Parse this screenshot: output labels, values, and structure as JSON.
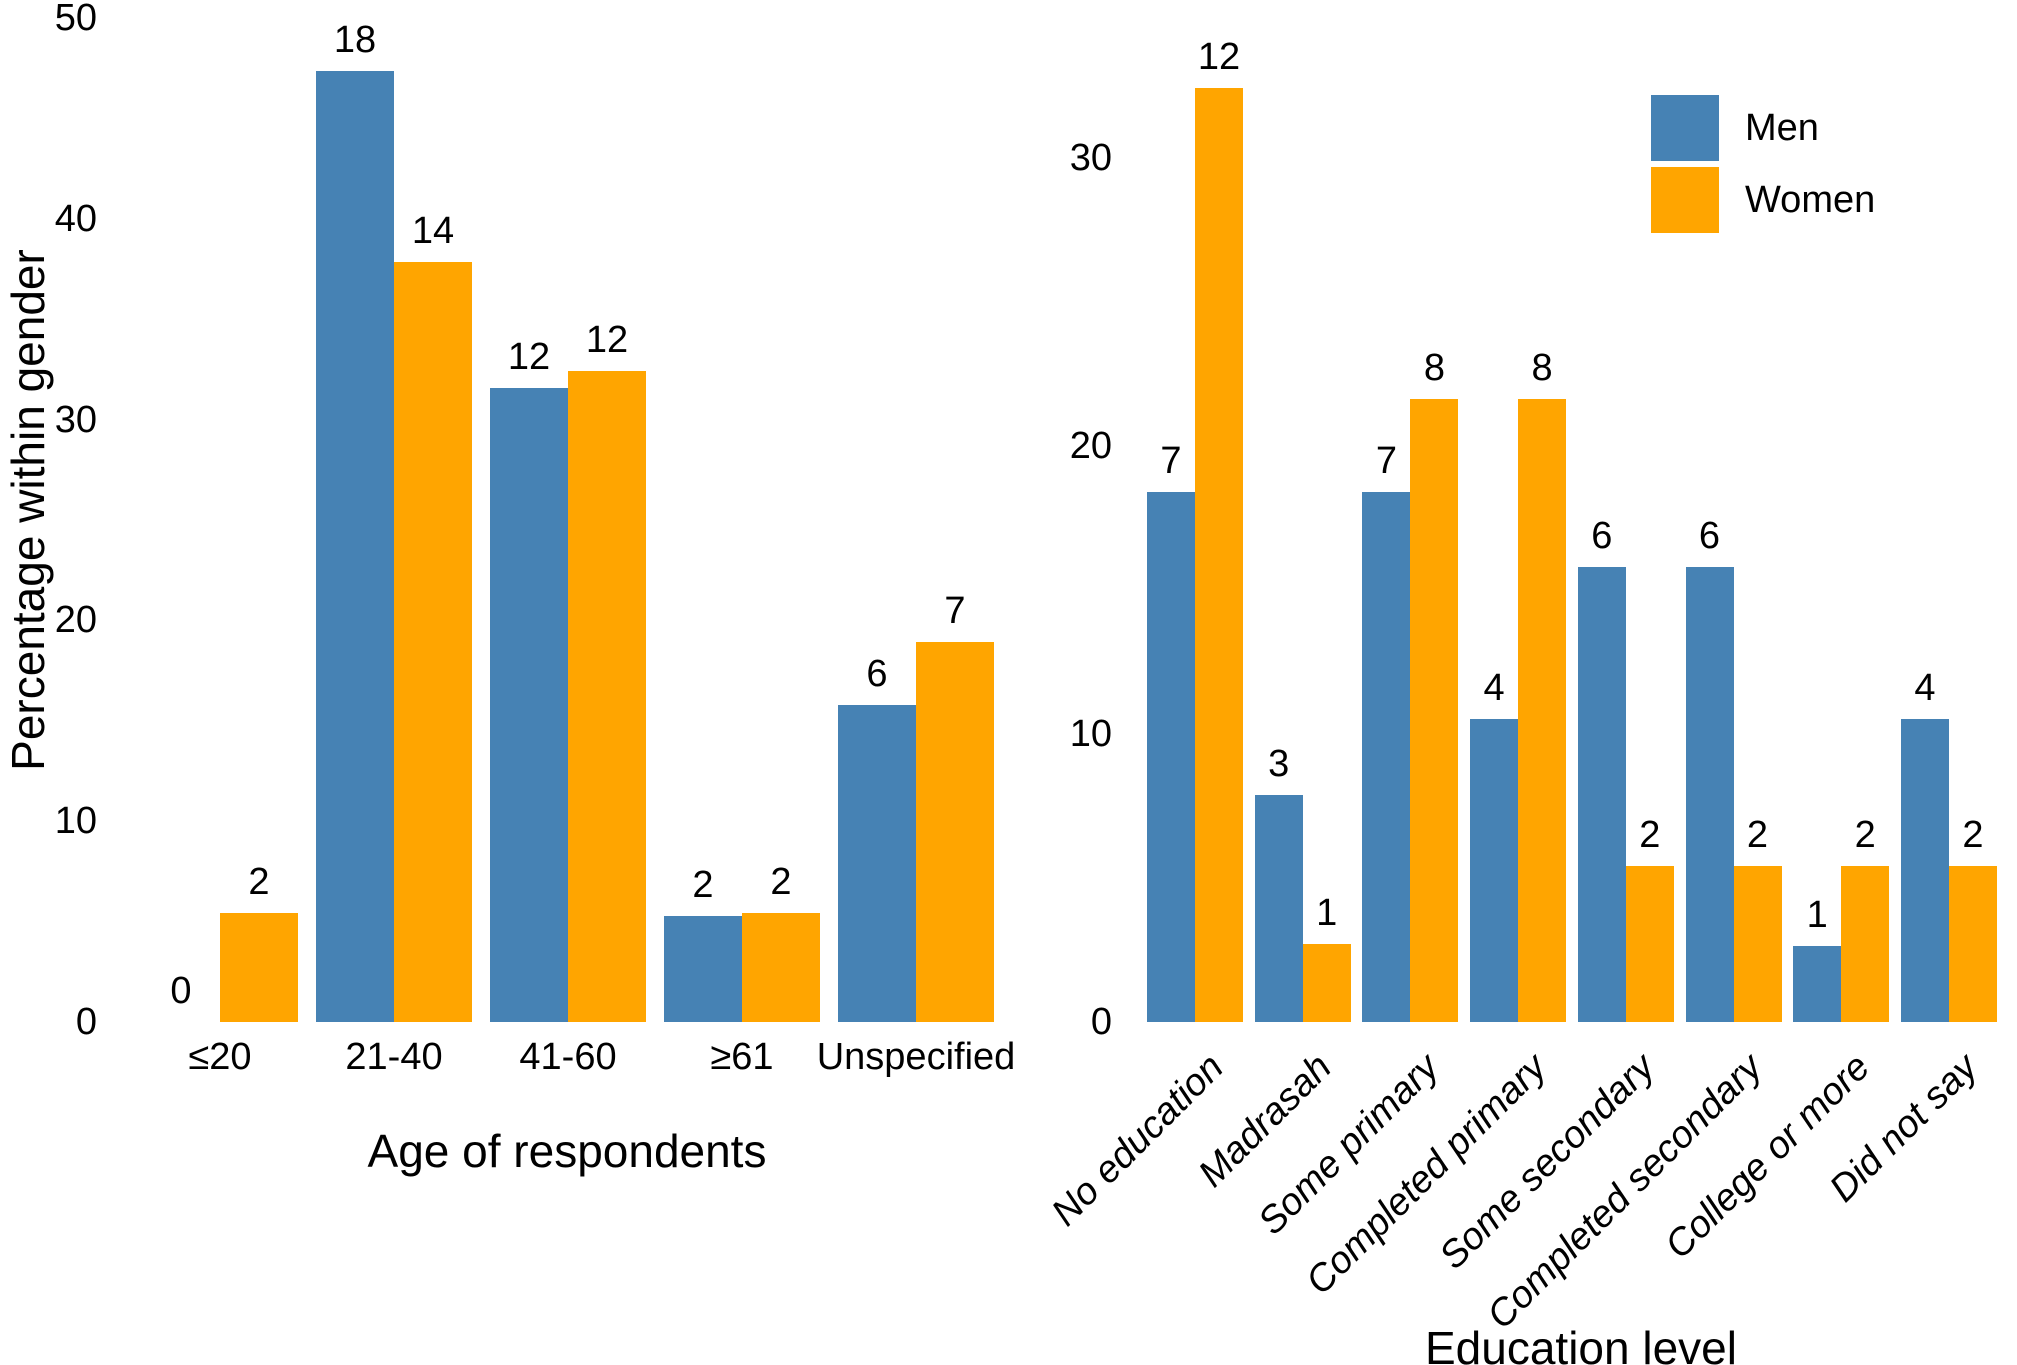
{
  "figure": {
    "background": "#FFFFFF",
    "shared_ylabel": "Percentage within gender"
  },
  "legend": {
    "position": "top-right",
    "items": [
      {
        "label": "Men",
        "color": "#4682B4"
      },
      {
        "label": "Women",
        "color": "#FFA500"
      }
    ]
  },
  "chart_data": [
    {
      "type": "bar",
      "title": "",
      "xlabel": "Age of respondents",
      "ylabel": "Percentage within gender",
      "categories": [
        "≤20",
        "21-40",
        "41-60",
        "≥61",
        "Unspecified"
      ],
      "series": [
        {
          "name": "Men",
          "color": "#4682B4",
          "counts": [
            0,
            18,
            12,
            2,
            6
          ],
          "values_pct": [
            0,
            47.37,
            31.58,
            5.26,
            15.79
          ]
        },
        {
          "name": "Women",
          "color": "#FFA500",
          "counts": [
            2,
            14,
            12,
            2,
            7
          ],
          "values_pct": [
            5.41,
            37.84,
            32.43,
            5.41,
            18.92
          ]
        }
      ],
      "bar_labels": "counts shown above each bar",
      "yticks": [
        0,
        10,
        20,
        30,
        40,
        50
      ],
      "ylim": [
        0,
        50
      ],
      "grid": false,
      "legend_position": "none"
    },
    {
      "type": "bar",
      "title": "",
      "xlabel": "Education level",
      "ylabel": "",
      "categories": [
        "No education",
        "Madrasah",
        "Some primary",
        "Completed primary",
        "Some secondary",
        "Completed secondary",
        "College or more",
        "Did not say"
      ],
      "series": [
        {
          "name": "Men",
          "color": "#4682B4",
          "counts": [
            7,
            3,
            7,
            4,
            6,
            6,
            1,
            4
          ],
          "values_pct": [
            18.42,
            7.89,
            18.42,
            10.53,
            15.79,
            15.79,
            2.63,
            10.53
          ]
        },
        {
          "name": "Women",
          "color": "#FFA500",
          "counts": [
            12,
            1,
            8,
            8,
            2,
            2,
            2,
            2
          ],
          "values_pct": [
            32.43,
            2.7,
            21.62,
            21.62,
            5.41,
            5.41,
            5.41,
            5.41
          ]
        }
      ],
      "bar_labels": "counts shown above each bar",
      "yticks": [
        0,
        10,
        20,
        30
      ],
      "ylim": [
        0,
        33.5
      ],
      "xtick_rotation": 45,
      "xtick_style": "italic",
      "grid": false,
      "legend_position": "top-right"
    }
  ]
}
